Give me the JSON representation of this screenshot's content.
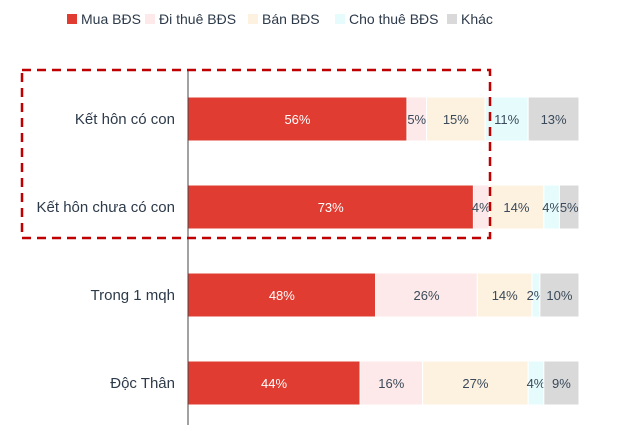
{
  "chart_data": {
    "type": "bar",
    "orientation": "horizontal",
    "stacked": true,
    "categories": [
      "Kết hôn có con",
      "Kết hôn chưa có con",
      "Trong 1 mqh",
      "Độc Thân"
    ],
    "series": [
      {
        "name": "Mua BĐS",
        "color": "#E03C31",
        "values": [
          56,
          73,
          48,
          44
        ]
      },
      {
        "name": "Đi thuê BĐS",
        "color": "#FDE9E9",
        "values": [
          5,
          4,
          26,
          16
        ]
      },
      {
        "name": "Bán BĐS",
        "color": "#FDF1E0",
        "values": [
          15,
          14,
          14,
          27
        ]
      },
      {
        "name": "Cho thuê BĐS",
        "color": "#E6FCFC",
        "values": [
          11,
          4,
          2,
          4
        ]
      },
      {
        "name": "Khác",
        "color": "#D9D9D9",
        "values": [
          13,
          5,
          10,
          9
        ]
      }
    ],
    "xlim": [
      0,
      100
    ],
    "legend": "top",
    "grid": false,
    "annotation": "dashed red box around first two categories",
    "highlight_color": "#C00000"
  }
}
